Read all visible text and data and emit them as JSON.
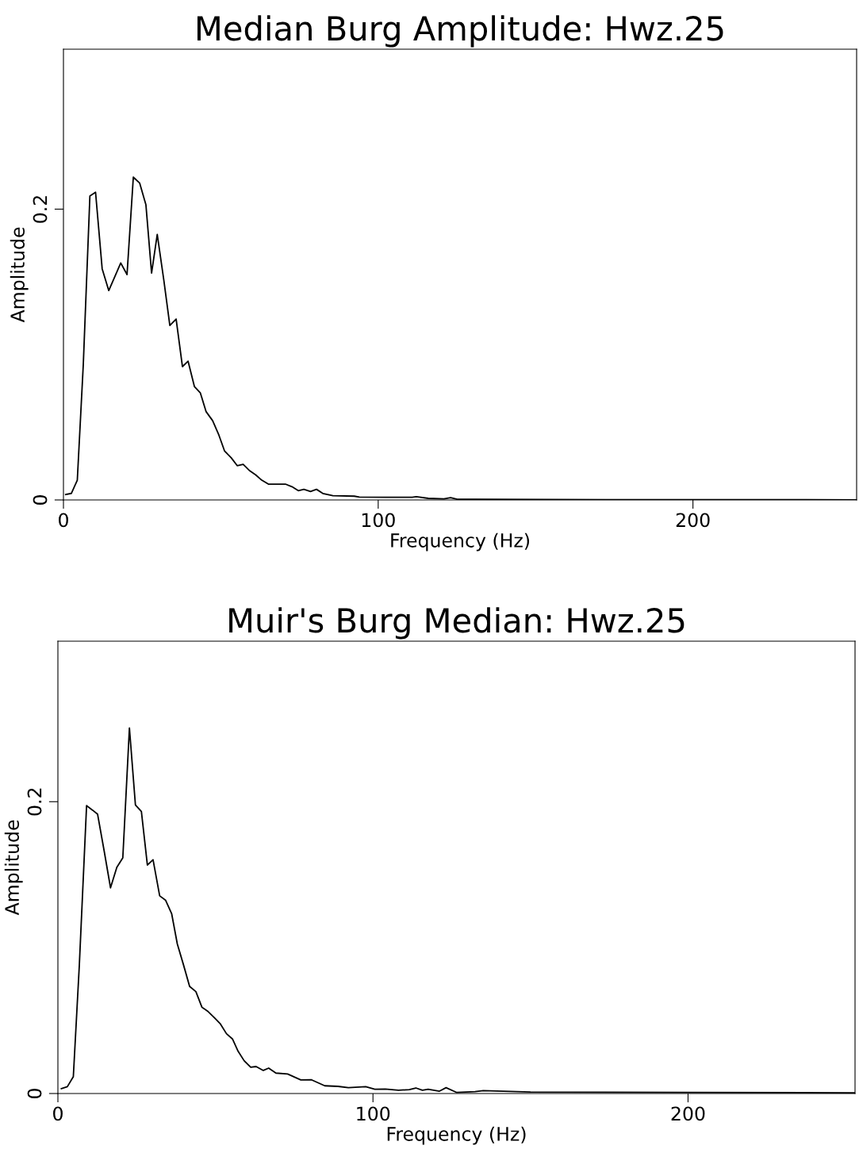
{
  "chart_data": [
    {
      "type": "line",
      "title": "Median Burg Amplitude: Hwz.25",
      "xlabel": "Frequency (Hz)",
      "ylabel": "Amplitude",
      "xlim": [
        0,
        252
      ],
      "ylim": [
        0,
        0.31
      ],
      "xticks": [
        0,
        100,
        200
      ],
      "yticks": [
        0,
        0.2
      ],
      "grid": false,
      "legend": false,
      "marker": "none",
      "line_style": "solid",
      "series": [
        {
          "color": "#000000",
          "x": [
            0.7,
            2.5,
            4.4,
            6.3,
            8.4,
            10.2,
            12.3,
            14.4,
            16.4,
            18.2,
            20.2,
            22.2,
            24.2,
            26.2,
            28,
            29.8,
            31.9,
            33.8,
            35.8,
            37.8,
            39.6,
            41.6,
            43.5,
            45.3,
            47.4,
            49.4,
            51.2,
            53.3,
            55.2,
            57.1,
            59.2,
            61.1,
            63,
            65.1,
            68,
            70.5,
            72.6,
            74.6,
            76.4,
            78.5,
            80.4,
            82.4,
            85.6,
            92.4,
            94,
            102.4,
            110.8,
            112.1,
            115.9,
            120.9,
            123,
            125.1,
            131,
            150,
            200,
            252
          ],
          "values": [
            0.0037,
            0.0045,
            0.0136,
            0.093,
            0.209,
            0.2116,
            0.159,
            0.144,
            0.154,
            0.163,
            0.155,
            0.222,
            0.218,
            0.203,
            0.156,
            0.1826,
            0.151,
            0.12,
            0.1244,
            0.0917,
            0.0954,
            0.078,
            0.0736,
            0.0608,
            0.0545,
            0.0445,
            0.0336,
            0.029,
            0.0236,
            0.0245,
            0.02,
            0.0172,
            0.0136,
            0.0109,
            0.0109,
            0.0109,
            0.0091,
            0.0064,
            0.0073,
            0.0058,
            0.0073,
            0.0045,
            0.0029,
            0.0026,
            0.002,
            0.0018,
            0.0018,
            0.0022,
            0.0011,
            0.0007,
            0.0016,
            0.0005,
            0.0004,
            0.0003,
            0.0002,
            0.0001
          ]
        }
      ]
    },
    {
      "type": "line",
      "title": "Muir's Burg Median: Hwz.25",
      "xlabel": "Frequency (Hz)",
      "ylabel": "Amplitude",
      "xlim": [
        0,
        253
      ],
      "ylim": [
        0,
        0.31
      ],
      "xticks": [
        0,
        100,
        200
      ],
      "yticks": [
        0,
        0.2
      ],
      "grid": false,
      "legend": false,
      "marker": "none",
      "line_style": "solid",
      "series": [
        {
          "color": "#000000",
          "x": [
            1.1,
            3,
            4.9,
            6.8,
            9.1,
            11,
            12.6,
            14.7,
            16.7,
            18.7,
            20.6,
            22.7,
            24.6,
            26.5,
            28.4,
            30.2,
            32.3,
            34.2,
            36.1,
            37.9,
            39.9,
            41.8,
            43.8,
            45.7,
            47.7,
            49.7,
            51.6,
            53.5,
            55.4,
            57.2,
            59.1,
            61.2,
            62.9,
            65.2,
            66.9,
            69.2,
            72.9,
            77.1,
            80.5,
            84.7,
            88.9,
            92.2,
            97.7,
            100.6,
            103.9,
            108.1,
            111.5,
            113.6,
            115.7,
            117.5,
            121.1,
            123.2,
            126.6,
            132.4,
            135,
            150,
            200,
            253
          ],
          "values": [
            0.0034,
            0.0047,
            0.0116,
            0.0879,
            0.1973,
            0.1942,
            0.1914,
            0.166,
            0.141,
            0.155,
            0.1615,
            0.2505,
            0.1978,
            0.1933,
            0.1566,
            0.1602,
            0.1355,
            0.1324,
            0.1233,
            0.1025,
            0.0879,
            0.0734,
            0.0698,
            0.0592,
            0.0561,
            0.0519,
            0.0476,
            0.041,
            0.0374,
            0.0289,
            0.0225,
            0.018,
            0.0185,
            0.0158,
            0.0174,
            0.014,
            0.0134,
            0.0093,
            0.0094,
            0.0053,
            0.0049,
            0.004,
            0.0047,
            0.0029,
            0.0031,
            0.0022,
            0.0027,
            0.0038,
            0.0022,
            0.0029,
            0.0016,
            0.004,
            0.0007,
            0.0013,
            0.002,
            0.001,
            0.0008,
            0.0005
          ]
        }
      ]
    }
  ]
}
